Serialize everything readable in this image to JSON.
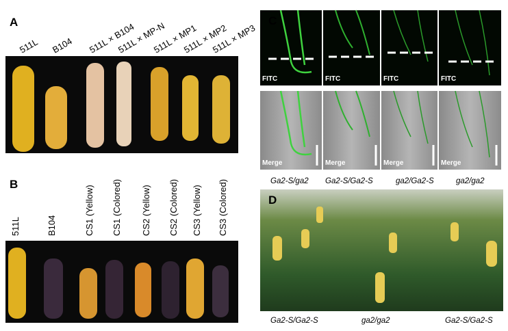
{
  "panels": [
    "A",
    "B",
    "C",
    "D"
  ],
  "panel_a": {
    "labels": [
      "511L",
      "B104",
      "511L × B104",
      "511L × MP-N",
      "511L × MP1",
      "511L × MP2",
      "511L × MP3"
    ]
  },
  "panel_b": {
    "labels": [
      "511L",
      "B104",
      "CS1 (Yellow)",
      "CS1 (Colored)",
      "CS2 (Yellow)",
      "CS2 (Colored)",
      "CS3 (Yellow)",
      "CS3 (Colored)"
    ]
  },
  "panel_c": {
    "top_labels": [
      "FITC",
      "FITC",
      "FITC",
      "FITC"
    ],
    "bottom_labels": [
      "Merge",
      "Merge",
      "Merge",
      "Merge"
    ],
    "genotypes": [
      "Ga2-S/ga2",
      "Ga2-S/Ga2-S",
      "ga2/Ga2-S",
      "ga2/ga2"
    ]
  },
  "panel_d": {
    "genotypes": [
      "Ga2-S/Ga2-S",
      "ga2/ga2",
      "Ga2-S/Ga2-S"
    ]
  }
}
